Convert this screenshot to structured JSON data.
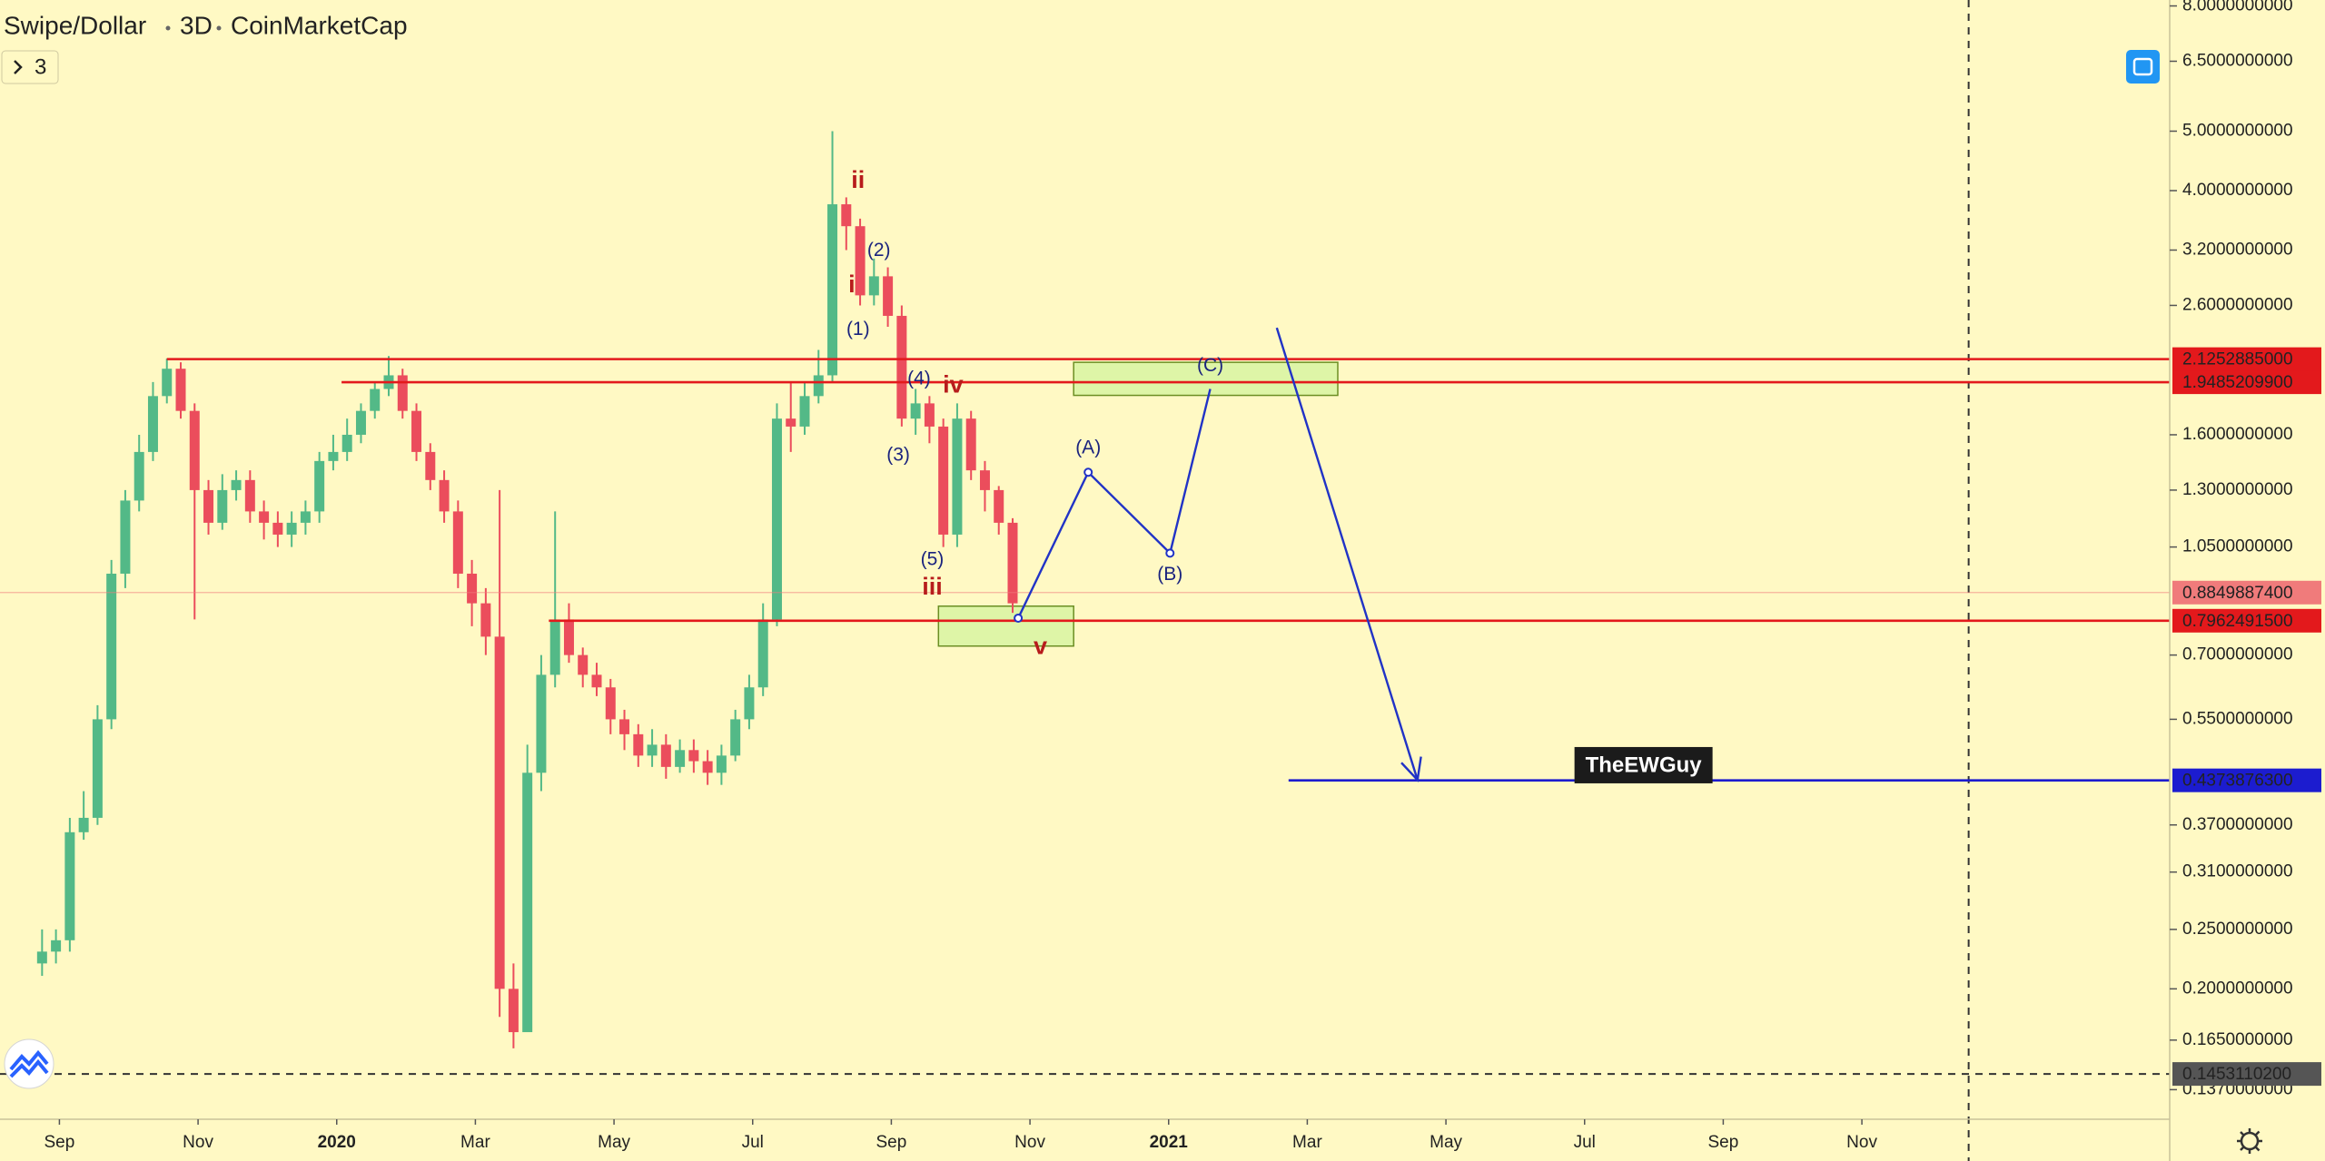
{
  "chart_data": {
    "type": "candlestick",
    "symbol": "Swipe/Dollar",
    "interval": "3D",
    "source": "CoinMarketCap",
    "indicator_count": "3",
    "log_scale": true,
    "up_color": "#53b987",
    "down_color": "#eb4d5c",
    "xlim": [
      -0.857,
      30.44
    ],
    "ylim": [
      0.1226,
      8.18
    ],
    "xticks": [
      {
        "value": 0,
        "label": "Sep"
      },
      {
        "value": 2,
        "label": "Nov"
      },
      {
        "value": 4,
        "label": "2020"
      },
      {
        "value": 6,
        "label": "Mar"
      },
      {
        "value": 8,
        "label": "May"
      },
      {
        "value": 10,
        "label": "Jul"
      },
      {
        "value": 12,
        "label": "Sep"
      },
      {
        "value": 14,
        "label": "Nov"
      },
      {
        "value": 16,
        "label": "2021"
      },
      {
        "value": 18,
        "label": "Mar"
      },
      {
        "value": 20,
        "label": "May"
      },
      {
        "value": 22,
        "label": "Jul"
      },
      {
        "value": 24,
        "label": "Sep"
      },
      {
        "value": 26,
        "label": "Nov"
      }
    ],
    "yticks": [
      {
        "value": 8,
        "label": "8.0000000000"
      },
      {
        "value": 6.5,
        "label": "6.5000000000"
      },
      {
        "value": 5,
        "label": "5.0000000000"
      },
      {
        "value": 4,
        "label": "4.0000000000"
      },
      {
        "value": 3.2,
        "label": "3.2000000000"
      },
      {
        "value": 2.6,
        "label": "2.6000000000"
      },
      {
        "value": 1.6,
        "label": "1.6000000000"
      },
      {
        "value": 1.3,
        "label": "1.3000000000"
      },
      {
        "value": 1.05,
        "label": "1.0500000000"
      },
      {
        "value": 0.7,
        "label": "0.7000000000"
      },
      {
        "value": 0.55,
        "label": "0.5500000000"
      },
      {
        "value": 0.37,
        "label": "0.3700000000"
      },
      {
        "value": 0.31,
        "label": "0.3100000000"
      },
      {
        "value": 0.25,
        "label": "0.2500000000"
      },
      {
        "value": 0.2,
        "label": "0.2000000000"
      },
      {
        "value": 0.165,
        "label": "0.1650000000"
      },
      {
        "value": 0.137,
        "label": "0.1370000000"
      }
    ],
    "x": [
      -0.25,
      -0.05,
      0.15,
      0.35,
      0.55,
      0.75,
      0.95,
      1.15,
      1.35,
      1.55,
      1.75,
      1.95,
      2.15,
      2.35,
      2.55,
      2.75,
      2.95,
      3.15,
      3.35,
      3.55,
      3.75,
      3.95,
      4.15,
      4.35,
      4.55,
      4.75,
      4.95,
      5.15,
      5.35,
      5.55,
      5.75,
      5.95,
      6.15,
      6.35,
      6.55,
      6.75,
      6.95,
      7.15,
      7.35,
      7.55,
      7.75,
      7.95,
      8.15,
      8.35,
      8.55,
      8.75,
      8.95,
      9.15,
      9.35,
      9.55,
      9.75,
      9.95,
      10.15,
      10.35,
      10.55,
      10.75,
      10.95,
      11.15,
      11.35,
      11.55,
      11.75,
      11.95,
      12.15,
      12.35,
      12.55,
      12.75,
      12.95,
      13.15,
      13.35,
      13.55,
      13.75
    ],
    "open": [
      0.22,
      0.23,
      0.24,
      0.36,
      0.38,
      0.55,
      0.95,
      1.25,
      1.5,
      1.85,
      2.05,
      1.75,
      1.3,
      1.15,
      1.3,
      1.35,
      1.2,
      1.15,
      1.1,
      1.15,
      1.2,
      1.45,
      1.5,
      1.6,
      1.75,
      1.9,
      2.0,
      1.75,
      1.5,
      1.35,
      1.2,
      0.95,
      0.85,
      0.75,
      0.2,
      0.17,
      0.45,
      0.65,
      0.8,
      0.7,
      0.65,
      0.62,
      0.55,
      0.52,
      0.48,
      0.5,
      0.46,
      0.49,
      0.47,
      0.45,
      0.48,
      0.55,
      0.62,
      0.8,
      1.7,
      1.65,
      1.85,
      2.0,
      3.8,
      3.5,
      2.7,
      2.9,
      2.5,
      1.7,
      1.8,
      1.65,
      1.1,
      1.7,
      1.4,
      1.3,
      1.15
    ],
    "high": [
      0.25,
      0.25,
      0.38,
      0.42,
      0.58,
      1.0,
      1.3,
      1.6,
      1.95,
      2.13,
      2.1,
      1.8,
      1.35,
      1.38,
      1.4,
      1.4,
      1.25,
      1.2,
      1.2,
      1.25,
      1.5,
      1.6,
      1.7,
      1.8,
      1.95,
      2.15,
      2.05,
      1.8,
      1.55,
      1.4,
      1.25,
      1.0,
      0.9,
      1.3,
      0.22,
      0.5,
      0.7,
      1.2,
      0.85,
      0.72,
      0.68,
      0.64,
      0.57,
      0.54,
      0.53,
      0.52,
      0.51,
      0.51,
      0.49,
      0.5,
      0.57,
      0.65,
      0.85,
      1.8,
      1.95,
      1.95,
      2.2,
      5.0,
      3.9,
      3.6,
      3.1,
      3.0,
      2.6,
      1.9,
      1.85,
      1.7,
      1.8,
      1.75,
      1.45,
      1.32,
      1.17
    ],
    "low": [
      0.21,
      0.22,
      0.23,
      0.35,
      0.37,
      0.53,
      0.9,
      1.2,
      1.45,
      1.8,
      1.7,
      0.8,
      1.1,
      1.12,
      1.25,
      1.15,
      1.08,
      1.05,
      1.05,
      1.1,
      1.15,
      1.4,
      1.45,
      1.55,
      1.7,
      1.85,
      1.7,
      1.45,
      1.3,
      1.15,
      0.9,
      0.78,
      0.7,
      0.18,
      0.16,
      0.17,
      0.42,
      0.62,
      0.68,
      0.62,
      0.6,
      0.52,
      0.49,
      0.46,
      0.46,
      0.44,
      0.45,
      0.45,
      0.43,
      0.43,
      0.47,
      0.53,
      0.6,
      0.78,
      1.5,
      1.6,
      1.8,
      1.95,
      3.2,
      2.6,
      2.6,
      2.4,
      1.65,
      1.6,
      1.55,
      1.05,
      1.05,
      1.35,
      1.2,
      1.1,
      0.82
    ],
    "close": [
      0.23,
      0.24,
      0.36,
      0.38,
      0.55,
      0.95,
      1.25,
      1.5,
      1.85,
      2.05,
      1.75,
      1.3,
      1.15,
      1.3,
      1.35,
      1.2,
      1.15,
      1.1,
      1.15,
      1.2,
      1.45,
      1.5,
      1.6,
      1.75,
      1.9,
      2.0,
      1.75,
      1.5,
      1.35,
      1.2,
      0.95,
      0.85,
      0.75,
      0.2,
      0.17,
      0.45,
      0.65,
      0.8,
      0.7,
      0.65,
      0.62,
      0.55,
      0.52,
      0.48,
      0.5,
      0.46,
      0.49,
      0.47,
      0.45,
      0.48,
      0.55,
      0.62,
      0.8,
      1.7,
      1.65,
      1.85,
      2.0,
      3.8,
      3.5,
      2.7,
      2.9,
      2.5,
      1.7,
      1.8,
      1.65,
      1.1,
      1.7,
      1.4,
      1.3,
      1.15,
      0.85
    ],
    "levels": [
      {
        "value": 2.1252885,
        "label": "2.1252885000",
        "color": "#e3191c",
        "from": 1.55,
        "style": "solid"
      },
      {
        "value": 1.94852099,
        "label": "1.9485209900",
        "color": "#e3191c",
        "from": 4.07,
        "style": "solid"
      },
      {
        "value": 0.88498874,
        "label": "0.8849887400",
        "color": "#f07b7b",
        "style": "faint"
      },
      {
        "value": 0.79624915,
        "label": "0.7962491500",
        "color": "#e3191c",
        "from": 7.06,
        "style": "solid"
      },
      {
        "value": 0.43738763,
        "label": "0.4373876300",
        "color": "#1c1ccf",
        "from": 17.73,
        "style": "solid"
      },
      {
        "value": 0.14531102,
        "label": "0.1453110200",
        "color": "#555555",
        "style": "dashed"
      }
    ],
    "vertical_lines": [
      27.54
    ],
    "zones": [
      {
        "x": [
          12.68,
          14.63
        ],
        "y": [
          0.724,
          0.841
        ]
      },
      {
        "x": [
          14.63,
          18.44
        ],
        "y": [
          1.855,
          2.1
        ]
      }
    ],
    "projection": {
      "color": "#2133c6",
      "x": [
        13.83,
        14.84,
        16.02,
        16.6
      ],
      "y": [
        0.804,
        1.39,
        1.026,
        1.9
      ]
    },
    "arrow": {
      "color": "#2133c6",
      "x": [
        17.56,
        19.59
      ],
      "y": [
        2.39,
        0.438
      ]
    },
    "wave_labels": [
      {
        "text": "ii",
        "x": 11.52,
        "y": 4.14,
        "color": "#b71c1c"
      },
      {
        "text": "i",
        "x": 11.43,
        "y": 2.8,
        "color": "#b71c1c"
      },
      {
        "text": "(2)",
        "x": 11.82,
        "y": 3.19,
        "color": "#1a237e"
      },
      {
        "text": "(1)",
        "x": 11.52,
        "y": 2.37,
        "color": "#1a237e"
      },
      {
        "text": "(4)",
        "x": 12.4,
        "y": 1.97,
        "color": "#1a237e"
      },
      {
        "text": "iv",
        "x": 12.89,
        "y": 1.92,
        "color": "#b71c1c"
      },
      {
        "text": "(3)",
        "x": 12.1,
        "y": 1.48,
        "color": "#1a237e"
      },
      {
        "text": "(5)",
        "x": 12.59,
        "y": 1.0,
        "color": "#1a237e"
      },
      {
        "text": "iii",
        "x": 12.59,
        "y": 0.9,
        "color": "#b71c1c"
      },
      {
        "text": "v",
        "x": 14.15,
        "y": 0.72,
        "color": "#b71c1c"
      },
      {
        "text": "(A)",
        "x": 14.84,
        "y": 1.52,
        "color": "#1a237e"
      },
      {
        "text": "(B)",
        "x": 16.02,
        "y": 0.945,
        "color": "#1a237e"
      },
      {
        "text": "(C)",
        "x": 16.6,
        "y": 2.07,
        "color": "#1a237e"
      }
    ],
    "watermark": {
      "text": "TheEWGuy",
      "x": 22.85,
      "y": 0.463
    }
  }
}
